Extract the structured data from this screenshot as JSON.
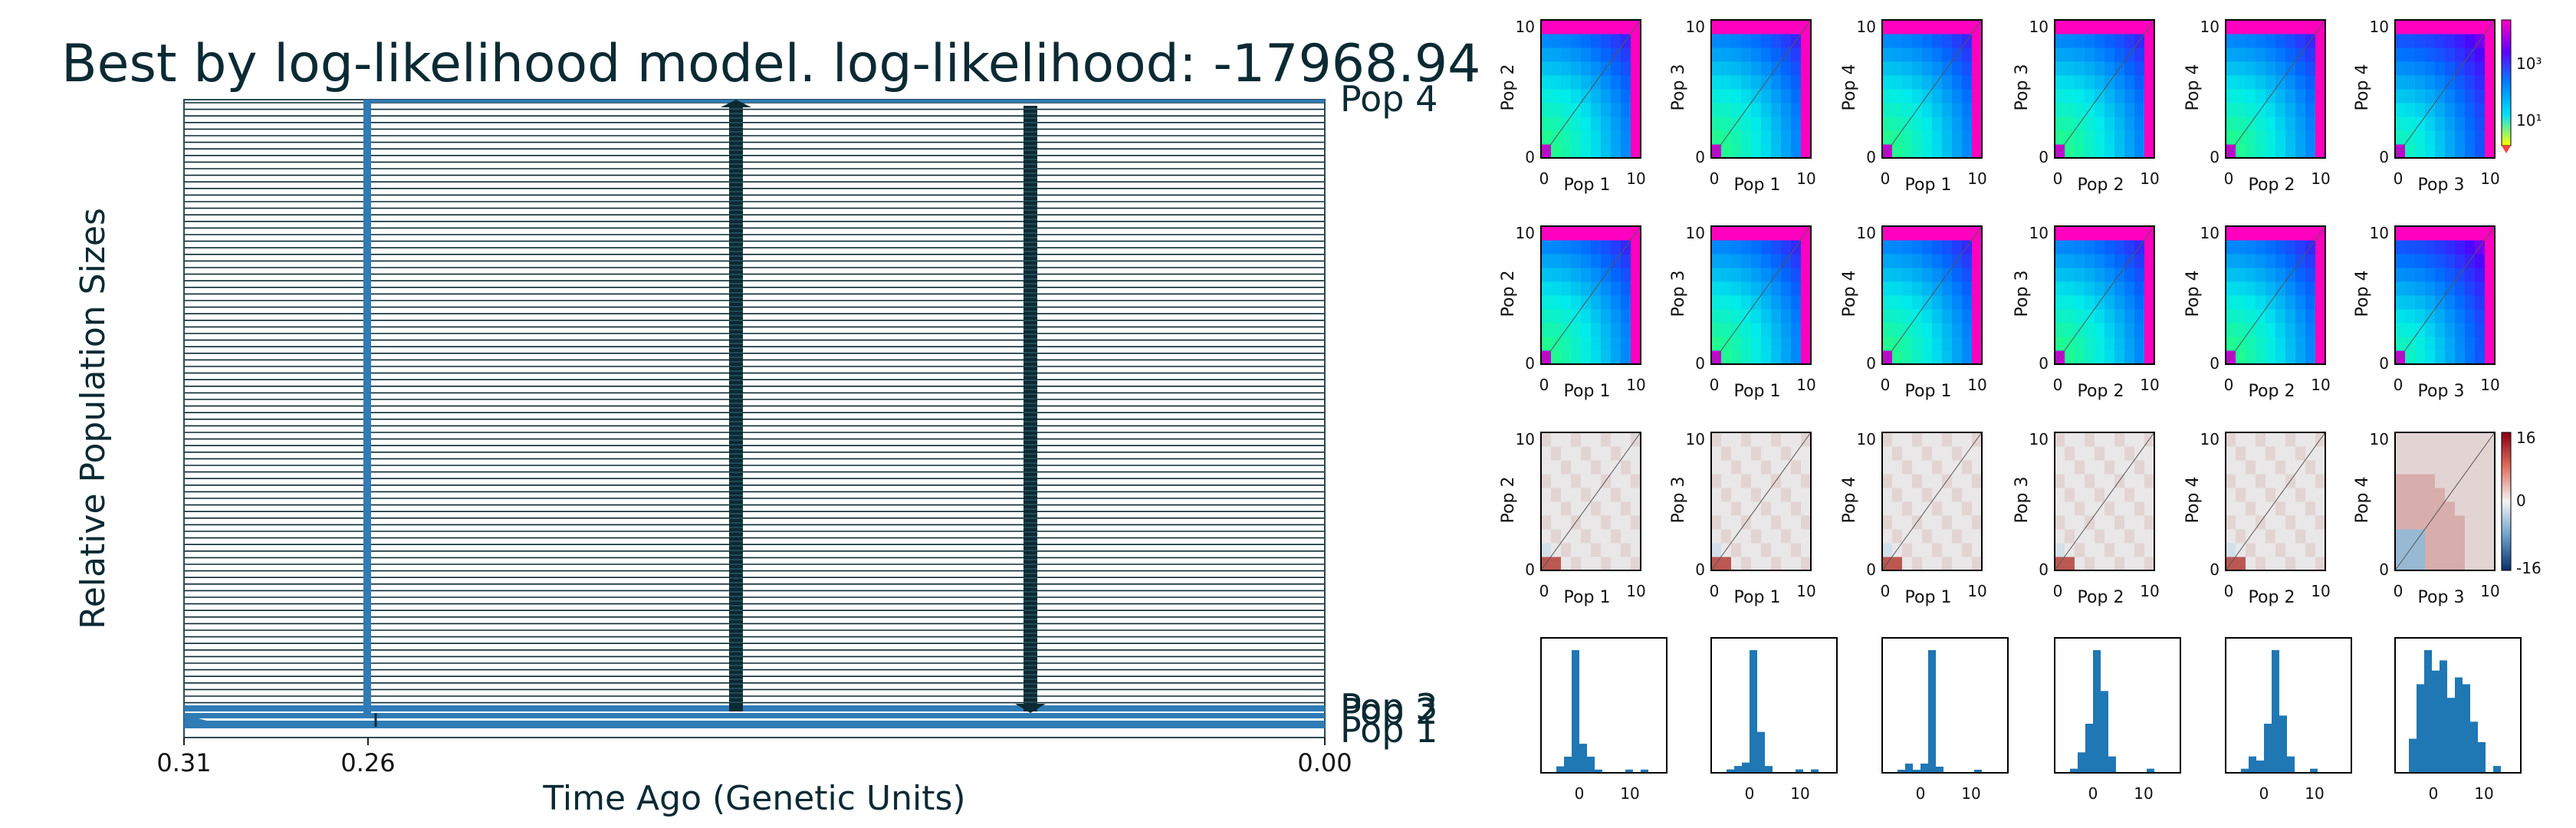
{
  "title": "Best by log-likelihood model. log-likelihood: -17968.94",
  "chart_data": [
    {
      "type": "line",
      "title": "Best by log-likelihood model. log-likelihood: -17968.94",
      "xlabel": "Time Ago (Genetic Units)",
      "ylabel": "Relative Population Sizes",
      "x_ticks": [
        0.31,
        0.26,
        0.0
      ],
      "x_tick_labels": [
        "0.31",
        "0.26",
        "0.00"
      ],
      "xlim": [
        0.31,
        0.0
      ],
      "population_labels": [
        "Pop 4",
        "Pop 3",
        "Pop 2",
        "Pop 1"
      ],
      "split_times": [
        0.31,
        0.26
      ],
      "migration_arrow_times": [
        0.16,
        0.08
      ],
      "colors": {
        "population": "#2f7bb6",
        "line": "#0b2a33"
      }
    },
    {
      "type": "heatmap",
      "description_rows": [
        "observed",
        "model",
        "residuals"
      ],
      "panels": [
        {
          "ylabel": "Pop 2",
          "xlabel": "Pop 1"
        },
        {
          "ylabel": "Pop 3",
          "xlabel": "Pop 1"
        },
        {
          "ylabel": "Pop 4",
          "xlabel": "Pop 1"
        },
        {
          "ylabel": "Pop 3",
          "xlabel": "Pop 2"
        },
        {
          "ylabel": "Pop 4",
          "xlabel": "Pop 2"
        },
        {
          "ylabel": "Pop 4",
          "xlabel": "Pop 3"
        }
      ],
      "axis_tick_labels": [
        "0",
        "10"
      ],
      "colorbar_sfs": [
        "10³",
        "10¹"
      ],
      "colorbar_resid": [
        "16",
        "0",
        "-16"
      ]
    },
    {
      "type": "bar",
      "histograms": [
        {
          "values": [
            2,
            5,
            38,
            9,
            5,
            1,
            0,
            0,
            0,
            1,
            0,
            1
          ]
        },
        {
          "values": [
            1,
            2,
            3,
            36,
            12,
            2,
            0,
            0,
            0,
            1,
            0,
            1
          ]
        },
        {
          "values": [
            1,
            3,
            1,
            3,
            40,
            2,
            0,
            0,
            0,
            0,
            1,
            0
          ]
        },
        {
          "values": [
            1,
            5,
            12,
            30,
            20,
            4,
            0,
            0,
            0,
            0,
            1,
            0
          ]
        },
        {
          "values": [
            1,
            4,
            3,
            12,
            30,
            14,
            4,
            0,
            0,
            1,
            0,
            0
          ]
        },
        {
          "values": [
            10,
            26,
            36,
            30,
            33,
            22,
            28,
            26,
            15,
            9,
            0,
            2
          ]
        }
      ],
      "x_tick_labels": [
        "0",
        "10"
      ]
    }
  ]
}
